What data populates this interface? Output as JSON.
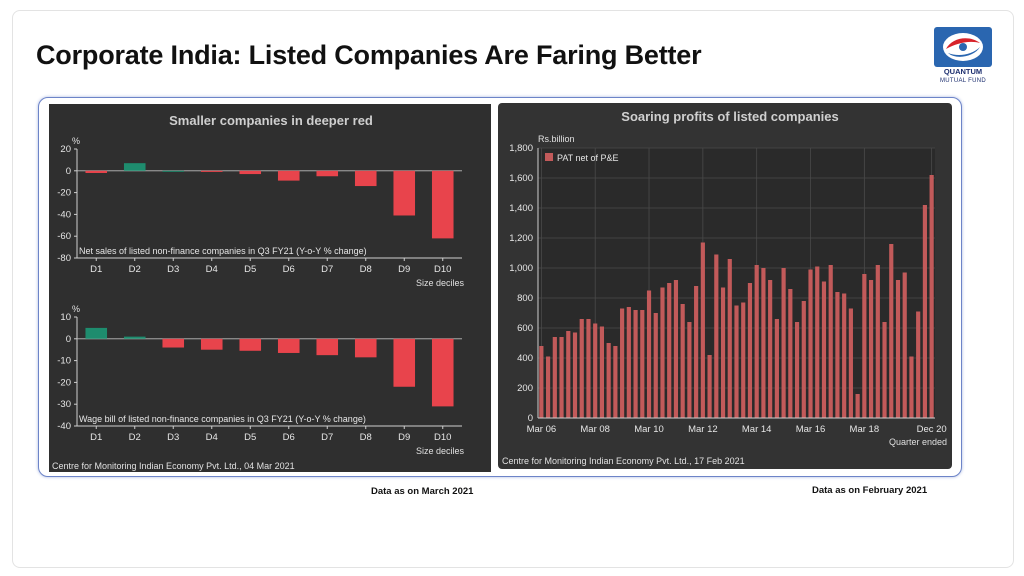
{
  "title": "Corporate India: Listed Companies Are Faring Better",
  "logo": {
    "name": "QUANTUM",
    "subname": "MUTUAL FUND"
  },
  "notes": {
    "left": "Data as on March 2021",
    "right": "Data as on February 2021"
  },
  "colors": {
    "negative": "#e8444c",
    "positive": "#1e8c6e",
    "profit": "#c25a5a",
    "panel": "#2f2f2f"
  },
  "left_panel": {
    "title": "Smaller companies in deeper red",
    "source": "Centre for Monitoring Indian Economy Pvt. Ltd., 04 Mar 2021"
  },
  "right_panel": {
    "source": "Centre for Monitoring Indian Economy Pvt. Ltd., 17 Feb 2021"
  },
  "chart_data": [
    {
      "type": "bar",
      "title": "Smaller companies in deeper red",
      "ylabel": "%",
      "xlabel": "Size deciles",
      "annotation": "Net sales of listed non-finance companies in Q3 FY21 (Y-o-Y % change)",
      "categories": [
        "D1",
        "D2",
        "D3",
        "D4",
        "D5",
        "D6",
        "D7",
        "D8",
        "D9",
        "D10"
      ],
      "values": [
        -2,
        7,
        0,
        -1,
        -3,
        -9,
        -5,
        -14,
        -41,
        -62
      ],
      "ylim": [
        -80,
        20
      ],
      "yticks": [
        20,
        0,
        -20,
        -40,
        -60,
        -80
      ]
    },
    {
      "type": "bar",
      "ylabel": "%",
      "xlabel": "Size deciles",
      "annotation": "Wage bill of listed non-finance companies in Q3 FY21 (Y-o-Y % change)",
      "categories": [
        "D1",
        "D2",
        "D3",
        "D4",
        "D5",
        "D6",
        "D7",
        "D8",
        "D9",
        "D10"
      ],
      "values": [
        5,
        1,
        -4,
        -5,
        -5.5,
        -6.5,
        -7.5,
        -8.5,
        -22,
        -31
      ],
      "ylim": [
        -40,
        10
      ],
      "yticks": [
        10,
        0,
        -10,
        -20,
        -30,
        -40
      ]
    },
    {
      "type": "bar",
      "title": "Soaring profits of listed companies",
      "ylabel": "Rs.billion",
      "xlabel": "Quarter ended",
      "legend": "PAT net of P&E",
      "legend_position": "top-left",
      "grid": true,
      "ylim": [
        0,
        1800
      ],
      "yticks": [
        "0",
        "200",
        "400",
        "600",
        "800",
        "1,000",
        "1,200",
        "1,400",
        "1,600",
        "1,800"
      ],
      "xticks": [
        "Mar 06",
        "Mar 08",
        "Mar 10",
        "Mar 12",
        "Mar 14",
        "Mar 16",
        "Mar 18",
        "Dec 20"
      ],
      "values": [
        480,
        410,
        540,
        540,
        580,
        570,
        660,
        660,
        630,
        610,
        500,
        480,
        730,
        740,
        720,
        720,
        850,
        700,
        870,
        900,
        920,
        760,
        640,
        880,
        1170,
        420,
        1090,
        870,
        1060,
        750,
        770,
        900,
        1020,
        1000,
        920,
        660,
        1000,
        860,
        640,
        780,
        990,
        1010,
        910,
        1020,
        840,
        830,
        730,
        160,
        960,
        920,
        1020,
        640,
        1160,
        920,
        970,
        410,
        710,
        1420,
        1620
      ]
    }
  ]
}
